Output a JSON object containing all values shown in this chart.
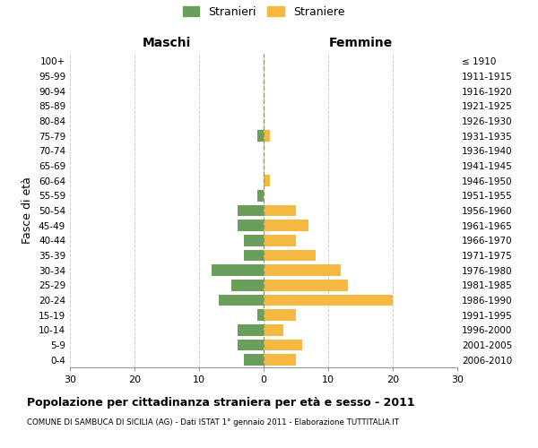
{
  "age_groups": [
    "0-4",
    "5-9",
    "10-14",
    "15-19",
    "20-24",
    "25-29",
    "30-34",
    "35-39",
    "40-44",
    "45-49",
    "50-54",
    "55-59",
    "60-64",
    "65-69",
    "70-74",
    "75-79",
    "80-84",
    "85-89",
    "90-94",
    "95-99",
    "100+"
  ],
  "birth_years": [
    "2006-2010",
    "2001-2005",
    "1996-2000",
    "1991-1995",
    "1986-1990",
    "1981-1985",
    "1976-1980",
    "1971-1975",
    "1966-1970",
    "1961-1965",
    "1956-1960",
    "1951-1955",
    "1946-1950",
    "1941-1945",
    "1936-1940",
    "1931-1935",
    "1926-1930",
    "1921-1925",
    "1916-1920",
    "1911-1915",
    "≤ 1910"
  ],
  "males": [
    3,
    4,
    4,
    1,
    7,
    5,
    8,
    3,
    3,
    4,
    4,
    1,
    0,
    0,
    0,
    1,
    0,
    0,
    0,
    0,
    0
  ],
  "females": [
    5,
    6,
    3,
    5,
    20,
    13,
    12,
    8,
    5,
    7,
    5,
    0,
    1,
    0,
    0,
    1,
    0,
    0,
    0,
    0,
    0
  ],
  "male_color": "#6a9e5b",
  "female_color": "#f5b942",
  "title": "Popolazione per cittadinanza straniera per età e sesso - 2011",
  "subtitle": "COMUNE DI SAMBUCA DI SICILIA (AG) - Dati ISTAT 1° gennaio 2011 - Elaborazione TUTTITALIA.IT",
  "xlabel_left": "Maschi",
  "xlabel_right": "Femmine",
  "ylabel_left": "Fasce di età",
  "legend_male": "Stranieri",
  "legend_female": "Straniere",
  "xlim": 30,
  "background_color": "#ffffff",
  "grid_color": "#cccccc",
  "dashed_line_color": "#999966"
}
